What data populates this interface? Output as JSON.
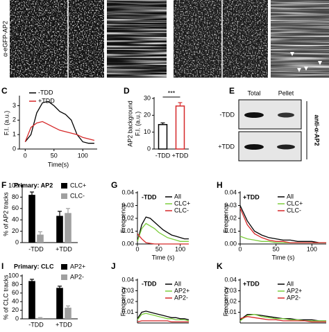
{
  "images": {
    "ylabel": "α-eGFP-AP2"
  },
  "blot": {
    "label": "E",
    "columns": [
      "Total",
      "Pellet"
    ],
    "rows": [
      "-TDD",
      "+TDD"
    ],
    "antibody": "anti-α-AP2"
  },
  "chart_data": [
    {
      "type": "line",
      "label": "C",
      "ylabel": "F.I. (a.u.)",
      "xlabel": "Time(s)",
      "x": [
        0,
        10,
        20,
        30,
        40,
        50,
        60,
        70,
        80,
        90,
        100,
        110,
        120
      ],
      "xlim": [
        -10,
        125
      ],
      "xticks": [
        0,
        50,
        100
      ],
      "ylim": [
        0,
        3.6
      ],
      "yticks": [
        0,
        1,
        2,
        3
      ],
      "series": [
        {
          "name": "-TDD",
          "color": "#000000",
          "values": [
            0.5,
            1.0,
            2.5,
            3.2,
            3.3,
            3.0,
            2.6,
            2.4,
            2.0,
            1.0,
            0.5,
            0.4,
            0.4
          ]
        },
        {
          "name": "+TDD",
          "color": "#d62728",
          "values": [
            0.5,
            1.5,
            1.8,
            1.9,
            1.7,
            1.5,
            1.3,
            1.2,
            1.1,
            1.0,
            0.8,
            0.7,
            0.6
          ]
        }
      ]
    },
    {
      "type": "bar",
      "label": "D",
      "ylabel": [
        "AP2 background",
        "F.I. (a.u.)"
      ],
      "categories": [
        "-TDD",
        "+TDD"
      ],
      "values": [
        14.5,
        25.5
      ],
      "errors": [
        1,
        2
      ],
      "colors": [
        "#000000",
        "#d62728"
      ],
      "annotation": "***",
      "ylim": [
        0,
        30
      ],
      "yticks": [
        0,
        10,
        20,
        30
      ]
    },
    {
      "type": "bar",
      "label": "F",
      "title": "Primary: AP2",
      "ylabel": "% of AP2 tracks",
      "categories": [
        "-TDD",
        "+TDD"
      ],
      "ylim": [
        0,
        100
      ],
      "yticks": [
        0,
        20,
        40,
        60,
        80,
        100
      ],
      "series": [
        {
          "name": "CLC+",
          "color": "#000000",
          "values": [
            84,
            47
          ],
          "errors": [
            5,
            8
          ]
        },
        {
          "name": "CLC-",
          "color": "#a0a0a0",
          "values": [
            14,
            52
          ],
          "errors": [
            5,
            8
          ]
        }
      ]
    },
    {
      "type": "line",
      "label": "G",
      "title": "-TDD",
      "ylabel": "Frequency",
      "xlabel": "Time (s)",
      "x": [
        0,
        10,
        20,
        30,
        40,
        50,
        60,
        70,
        80,
        90,
        100,
        110,
        120
      ],
      "xlim": [
        0,
        120
      ],
      "xticks": [
        0,
        50,
        100
      ],
      "ylim": [
        0,
        0.04
      ],
      "yticks": [
        {
          "value": 0,
          "label": "0.00"
        },
        0.01,
        0.02,
        0.03,
        0.04
      ],
      "series": [
        {
          "name": "All",
          "color": "#000000",
          "values": [
            0.002,
            0.015,
            0.021,
            0.02,
            0.017,
            0.014,
            0.011,
            0.009,
            0.007,
            0.006,
            0.005,
            0.004,
            0.004
          ]
        },
        {
          "name": "CLC+",
          "color": "#7ccd3c",
          "values": [
            0.002,
            0.012,
            0.016,
            0.014,
            0.012,
            0.009,
            0.007,
            0.005,
            0.004,
            0.003,
            0.002,
            0.002,
            0.002
          ]
        },
        {
          "name": "CLC-",
          "color": "#d62728",
          "values": [
            0.008,
            0.004,
            0.001,
            0.0005,
            0,
            0,
            0,
            0,
            0,
            0,
            0,
            0,
            0
          ]
        }
      ]
    },
    {
      "type": "line",
      "label": "H",
      "title": "+TDD",
      "ylabel": "Frequency",
      "xlabel": "Time (s)",
      "x": [
        0,
        10,
        20,
        30,
        40,
        50,
        60,
        70,
        80,
        90,
        100,
        110,
        120
      ],
      "xlim": [
        0,
        120
      ],
      "xticks": [
        0,
        50,
        100
      ],
      "ylim": [
        0,
        0.04
      ],
      "yticks": [
        {
          "value": 0,
          "label": "0.00"
        },
        0.01,
        0.02,
        0.03,
        0.04
      ],
      "series": [
        {
          "name": "All",
          "color": "#000000",
          "values": [
            0.03,
            0.018,
            0.01,
            0.007,
            0.005,
            0.004,
            0.003,
            0.003,
            0.002,
            0.002,
            0.002,
            0.001,
            0.001
          ]
        },
        {
          "name": "CLC+",
          "color": "#7ccd3c",
          "values": [
            0.006,
            0.004,
            0.003,
            0.002,
            0.002,
            0.001,
            0.001,
            0.001,
            0.001,
            0.001,
            0.001,
            0.001,
            0.001
          ]
        },
        {
          "name": "CLC-",
          "color": "#d62728",
          "values": [
            0.028,
            0.015,
            0.008,
            0.005,
            0.003,
            0.002,
            0.002,
            0.001,
            0.001,
            0.001,
            0.001,
            0.001,
            0.001
          ]
        }
      ]
    },
    {
      "type": "bar",
      "label": "I",
      "title": "Primary: CLC",
      "ylabel": "% of CLC tracks",
      "categories": [
        "-TDD",
        "+TDD"
      ],
      "ylim": [
        0,
        100
      ],
      "yticks": [
        0,
        20,
        40,
        60,
        80,
        100
      ],
      "series": [
        {
          "name": "AP2+",
          "color": "#000000",
          "values": [
            88,
            72
          ],
          "errors": [
            4,
            4
          ]
        },
        {
          "name": "AP2-",
          "color": "#a0a0a0",
          "values": [
            2,
            26
          ],
          "errors": [
            1,
            4
          ]
        }
      ]
    },
    {
      "type": "line",
      "label": "J",
      "title": "-TDD",
      "ylabel": "Frequency",
      "x": [
        0,
        10,
        20,
        30,
        40,
        50,
        60,
        70,
        80,
        90,
        100,
        110,
        120
      ],
      "xlim": [
        0,
        120
      ],
      "ylim": [
        0,
        0.04
      ],
      "yticks": [
        0.01,
        0.02,
        0.03,
        0.04
      ],
      "series": [
        {
          "name": "All",
          "color": "#000000",
          "values": [
            0.004,
            0.01,
            0.011,
            0.01,
            0.009,
            0.008,
            0.007,
            0.006,
            0.005,
            0.005,
            0.004,
            0.004,
            0.003
          ]
        },
        {
          "name": "AP2+",
          "color": "#7ccd3c",
          "values": [
            0.003,
            0.008,
            0.009,
            0.008,
            0.007,
            0.006,
            0.005,
            0.004,
            0.004,
            0.003,
            0.003,
            0.003,
            0.002
          ]
        },
        {
          "name": "AP2-",
          "color": "#d62728",
          "values": [
            0.001,
            0.002,
            0.002,
            0.002,
            0.002,
            0.002,
            0.002,
            0.002,
            0.001,
            0.001,
            0.001,
            0.001,
            0.001
          ]
        }
      ]
    },
    {
      "type": "line",
      "label": "K",
      "title": "+TDD",
      "ylabel": "Frequency",
      "x": [
        0,
        10,
        20,
        30,
        40,
        50,
        60,
        70,
        80,
        90,
        100,
        110,
        120
      ],
      "xlim": [
        0,
        120
      ],
      "ylim": [
        0,
        0.04
      ],
      "yticks": [
        0.01,
        0.02,
        0.03,
        0.04
      ],
      "series": [
        {
          "name": "All",
          "color": "#000000",
          "values": [
            0.003,
            0.008,
            0.008,
            0.007,
            0.006,
            0.005,
            0.004,
            0.004,
            0.003,
            0.003,
            0.003,
            0.002,
            0.002
          ]
        },
        {
          "name": "AP2+",
          "color": "#7ccd3c",
          "values": [
            0.002,
            0.007,
            0.008,
            0.006,
            0.005,
            0.004,
            0.004,
            0.003,
            0.003,
            0.002,
            0.002,
            0.002,
            0.002
          ]
        },
        {
          "name": "AP2-",
          "color": "#d62728",
          "values": [
            0.004,
            0.006,
            0.005,
            0.004,
            0.003,
            0.003,
            0.002,
            0.002,
            0.002,
            0.002,
            0.001,
            0.001,
            0.001
          ]
        }
      ]
    }
  ]
}
